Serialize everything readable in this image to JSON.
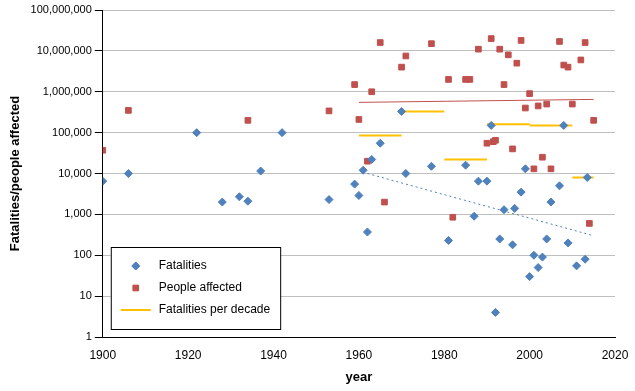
{
  "chart_data": {
    "type": "scatter",
    "x_label": "year",
    "y_label": "Fatalities/people affected",
    "log": "y",
    "grid": "y",
    "legend": "lower left",
    "xlim": [
      1900,
      2020
    ],
    "xticks": [
      1900,
      1920,
      1940,
      1960,
      1980,
      2000,
      2020
    ],
    "ylim": [
      1,
      100000000
    ],
    "yticks": [
      1,
      10,
      100,
      {
        "value": 1000,
        "label": "1,000"
      },
      {
        "value": 10000,
        "label": "10,000"
      },
      {
        "value": 100000,
        "label": "100,000"
      },
      {
        "value": 1000000,
        "label": "1,000,000"
      },
      {
        "value": 10000000,
        "label": "10,000,000"
      },
      {
        "value": 100000000,
        "label": "100,000,000"
      }
    ],
    "series": [
      {
        "name": "Fatalities",
        "type": "scatter",
        "marker": "diamond",
        "color": "#4F81BD",
        "x": [
          1900,
          1906,
          1922,
          1928,
          1932,
          1934,
          1937,
          1942,
          1953,
          1959,
          1960,
          1961,
          1962,
          1963,
          1965,
          1970,
          1971,
          1977,
          1981,
          1985,
          1987,
          1988,
          1990,
          1991,
          1992,
          1993,
          1994,
          1996,
          1996.5,
          1998,
          1999,
          2000,
          2001,
          2002,
          2003,
          2004,
          2005,
          2007,
          2008,
          2009,
          2011,
          2013,
          2013.5
        ],
        "values": [
          6500,
          10000,
          100000,
          2000,
          2700,
          2100,
          11500,
          100000,
          2300,
          5500,
          2900,
          12000,
          370,
          22000,
          55000,
          330000,
          10000,
          15000,
          230,
          16000,
          900,
          6500,
          6500,
          150000,
          4,
          250,
          1300,
          180,
          1400,
          3500,
          13000,
          30,
          100,
          50,
          90,
          250,
          2000,
          5000,
          150000,
          200,
          55,
          80,
          8000
        ]
      },
      {
        "name": "People affected",
        "type": "scatter",
        "marker": "square",
        "color": "#C0504D",
        "x": [
          1900,
          1906,
          1934,
          1953,
          1959,
          1960,
          1962,
          1963,
          1965,
          1966,
          1970,
          1971,
          1977,
          1981,
          1982,
          1985,
          1986,
          1988,
          1990,
          1991,
          1991.5,
          1992,
          1993,
          1994,
          1995,
          1996,
          1997,
          1998,
          1999,
          2000,
          2001,
          2002,
          2003,
          2004,
          2005,
          2007,
          2008,
          2009,
          2010,
          2012,
          2013,
          2014,
          2015
        ],
        "values": [
          37000,
          350000,
          200000,
          340000,
          1500000,
          210000,
          20000,
          1000000,
          16000000,
          2000,
          4000000,
          7500000,
          15000000,
          2000000,
          850,
          2000000,
          2000000,
          11000000,
          55000,
          20000000,
          60000,
          65000,
          11000000,
          1500000,
          8000000,
          40000,
          5000000,
          18000000,
          400000,
          900000,
          13000,
          450000,
          25000,
          500000,
          13000,
          17000000,
          4500000,
          4000000,
          500000,
          6000000,
          16000000,
          600,
          200000
        ]
      },
      {
        "name": "Fatalities per decade",
        "type": "line",
        "line_style": "solid",
        "color": "#FFC000",
        "x": [
          1960,
          1970,
          1970,
          1970,
          1980,
          1980,
          1980,
          1990,
          1990,
          1990,
          2000,
          2000,
          2000,
          2010,
          2010,
          2010,
          2015
        ],
        "values": [
          85000,
          85000,
          null,
          330000,
          330000,
          null,
          22000,
          22000,
          null,
          160000,
          160000,
          null,
          150000,
          150000,
          null,
          8000,
          8000
        ]
      }
    ],
    "trend_lines": [
      {
        "type": "line",
        "line_style": "solid",
        "color": "#C0504D",
        "x": [
          1960,
          2015
        ],
        "values": [
          550000,
          650000
        ]
      },
      {
        "type": "line",
        "line_style": "dotted",
        "color": "#4F81BD",
        "x": [
          1962,
          2015
        ],
        "values": [
          10000,
          300
        ]
      }
    ]
  }
}
